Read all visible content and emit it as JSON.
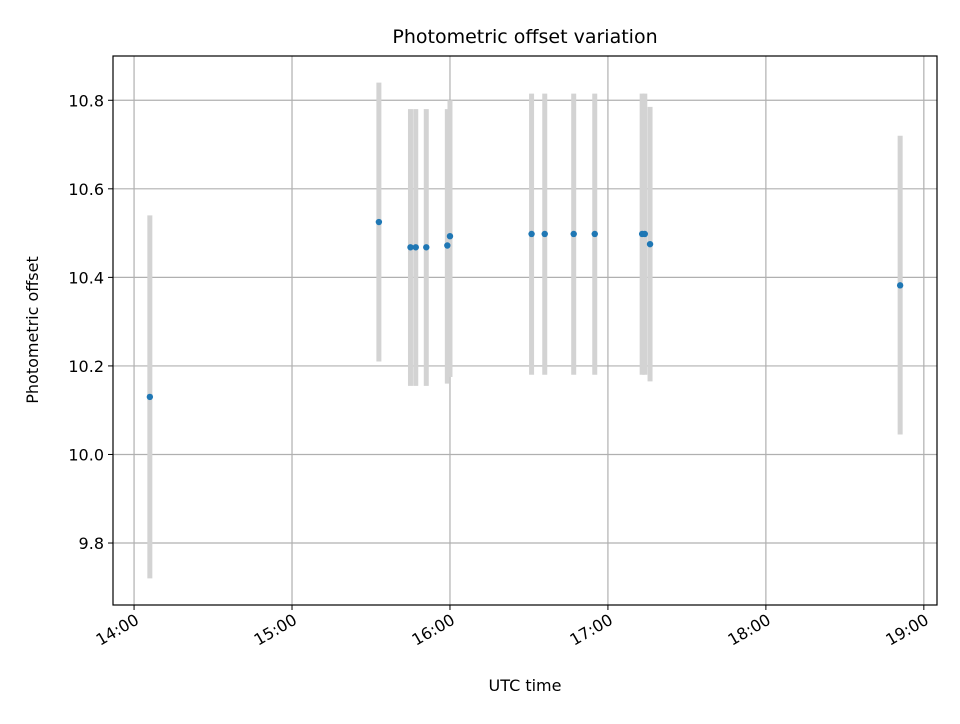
{
  "chart_data": {
    "type": "scatter",
    "title": "Photometric offset variation",
    "xlabel": "UTC time",
    "ylabel": "Photometric offset",
    "x_axis_type": "time",
    "xlim": [
      "13:52",
      "19:05"
    ],
    "ylim": [
      9.66,
      10.9
    ],
    "x_ticks": [
      "14:00",
      "15:00",
      "16:00",
      "17:00",
      "18:00",
      "19:00"
    ],
    "y_ticks": [
      "9.8",
      "10.0",
      "10.2",
      "10.4",
      "10.6",
      "10.8"
    ],
    "grid": true,
    "points": [
      {
        "x": "14:06",
        "y": 10.13,
        "y_low": 9.72,
        "y_high": 10.54
      },
      {
        "x": "15:33",
        "y": 10.525,
        "y_low": 10.21,
        "y_high": 10.84
      },
      {
        "x": "15:45",
        "y": 10.468,
        "y_low": 10.155,
        "y_high": 10.78
      },
      {
        "x": "15:47",
        "y": 10.468,
        "y_low": 10.155,
        "y_high": 10.78
      },
      {
        "x": "15:51",
        "y": 10.468,
        "y_low": 10.155,
        "y_high": 10.78
      },
      {
        "x": "15:59",
        "y": 10.472,
        "y_low": 10.16,
        "y_high": 10.78
      },
      {
        "x": "16:00",
        "y": 10.493,
        "y_low": 10.175,
        "y_high": 10.8
      },
      {
        "x": "16:31",
        "y": 10.498,
        "y_low": 10.18,
        "y_high": 10.815
      },
      {
        "x": "16:36",
        "y": 10.498,
        "y_low": 10.18,
        "y_high": 10.815
      },
      {
        "x": "16:47",
        "y": 10.498,
        "y_low": 10.18,
        "y_high": 10.815
      },
      {
        "x": "16:55",
        "y": 10.498,
        "y_low": 10.18,
        "y_high": 10.815
      },
      {
        "x": "17:13",
        "y": 10.498,
        "y_low": 10.18,
        "y_high": 10.815
      },
      {
        "x": "17:14",
        "y": 10.498,
        "y_low": 10.18,
        "y_high": 10.815
      },
      {
        "x": "17:16",
        "y": 10.475,
        "y_low": 10.165,
        "y_high": 10.785
      },
      {
        "x": "18:51",
        "y": 10.382,
        "y_low": 10.045,
        "y_high": 10.72
      }
    ],
    "colors": {
      "point": "#1f77b4",
      "errorbar": "#d3d3d3",
      "grid": "#b0b0b0",
      "axes": "#000000"
    }
  }
}
